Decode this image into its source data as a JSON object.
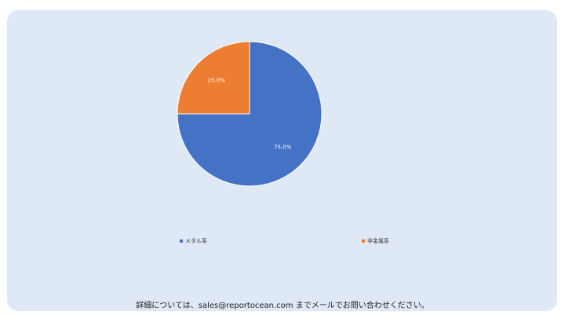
{
  "chart_data": {
    "type": "pie",
    "title": "",
    "slices": [
      {
        "label": "メタル系",
        "value": 75.0,
        "display": "75.0%",
        "color": "#4472c4"
      },
      {
        "label": "非金属系",
        "value": 25.0,
        "display": "25.0%",
        "color": "#ed7d31"
      }
    ],
    "legend_position": "bottom"
  },
  "footer": {
    "text": "詳細については、sales@reportocean.com までメールでお問い合わせください。"
  }
}
